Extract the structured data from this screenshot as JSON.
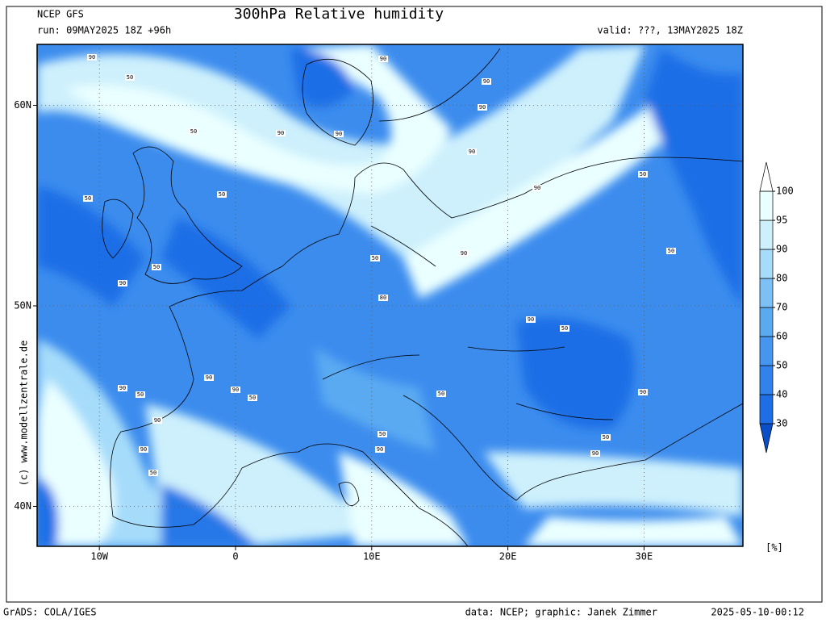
{
  "header": {
    "model": "NCEP GFS",
    "run": "run: 09MAY2025 18Z +96h",
    "title": "300hPa Relative humidity",
    "valid": "valid: ???, 13MAY2025 18Z"
  },
  "map": {
    "lat_labels": [
      {
        "value": 60,
        "label": "60N"
      },
      {
        "value": 50,
        "label": "50N"
      },
      {
        "value": 40,
        "label": "40N"
      }
    ],
    "lon_labels": [
      {
        "value": -10,
        "label": "10W"
      },
      {
        "value": 0,
        "label": "0"
      },
      {
        "value": 10,
        "label": "10E"
      },
      {
        "value": 20,
        "label": "20E"
      },
      {
        "value": 30,
        "label": "30E"
      }
    ],
    "contour_labels": [
      "90",
      "50",
      "90",
      "90",
      "90",
      "50",
      "90",
      "90",
      "50",
      "50",
      "90",
      "90",
      "50",
      "50",
      "90",
      "50",
      "50",
      "90",
      "80",
      "90",
      "50",
      "90",
      "90",
      "50",
      "50",
      "90",
      "90",
      "50",
      "90",
      "50",
      "90",
      "50",
      "90",
      "90",
      "50"
    ]
  },
  "colorbar": {
    "levels": [
      30,
      40,
      50,
      60,
      70,
      80,
      90,
      95,
      100
    ],
    "colors": [
      "#0a4fc8",
      "#1e6ee6",
      "#3282ee",
      "#4696f0",
      "#5aaaf2",
      "#7cc0f6",
      "#a6dcfa",
      "#cdf0fc",
      "#eaffff",
      "#ffffff"
    ],
    "unit": "[%]"
  },
  "watermark": "(c) www.modellzentrale.de",
  "footer": {
    "software": "GrADS: COLA/IGES",
    "credit": "data: NCEP; graphic: Janek Zimmer",
    "timestamp": "2025-05-10-00:12"
  }
}
